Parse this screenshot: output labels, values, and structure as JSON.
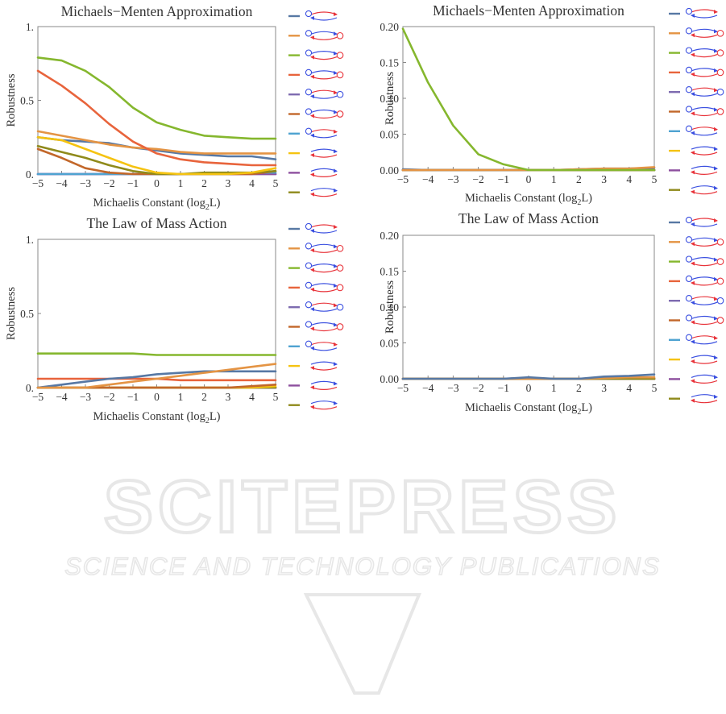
{
  "colors": [
    "#5778a4",
    "#e49444",
    "#85b72e",
    "#e8643c",
    "#7e6bb0",
    "#c2672a",
    "#4fa3d1",
    "#f5c311",
    "#8d4f9e",
    "#8f8a1b"
  ],
  "watermark": {
    "main": "SCITEPRESS",
    "sub": "SCIENCE AND TECHNOLOGY PUBLICATIONS",
    "color": "#e7e7e7"
  },
  "chart_data": [
    {
      "type": "line",
      "title": "Michaels−Menten Approximation",
      "xlabel": "Michaelis Constant (log2L)",
      "ylabel": "Robustness",
      "xlim": [
        -5,
        5
      ],
      "ylim": [
        0,
        1
      ],
      "xticks": [
        "−5",
        "−4",
        "−3",
        "−2",
        "−1",
        "0",
        "1",
        "2",
        "3",
        "4",
        "5"
      ],
      "yticks": [
        "0.",
        "0.5",
        "1."
      ],
      "x": [
        -5,
        -4,
        -3,
        -2,
        -1,
        0,
        1,
        2,
        3,
        4,
        5
      ],
      "series": [
        {
          "values": [
            0.25,
            0.23,
            0.22,
            0.21,
            0.18,
            0.16,
            0.14,
            0.13,
            0.12,
            0.12,
            0.1
          ]
        },
        {
          "values": [
            0.29,
            0.26,
            0.23,
            0.2,
            0.18,
            0.17,
            0.15,
            0.14,
            0.14,
            0.14,
            0.14
          ]
        },
        {
          "values": [
            0.79,
            0.77,
            0.7,
            0.59,
            0.45,
            0.35,
            0.3,
            0.26,
            0.25,
            0.24,
            0.24
          ]
        },
        {
          "values": [
            0.7,
            0.6,
            0.48,
            0.34,
            0.22,
            0.14,
            0.1,
            0.08,
            0.07,
            0.06,
            0.06
          ]
        },
        {
          "values": [
            0,
            0,
            0,
            0,
            0,
            0,
            0,
            0,
            0,
            0,
            0
          ]
        },
        {
          "values": [
            0.17,
            0.11,
            0.04,
            0.01,
            0,
            0,
            0,
            0,
            0,
            0,
            0.02
          ]
        },
        {
          "values": [
            0,
            0,
            0,
            0,
            0,
            0,
            0,
            0,
            0,
            0.01,
            0.01
          ]
        },
        {
          "values": [
            0.25,
            0.23,
            0.17,
            0.11,
            0.05,
            0.01,
            0,
            0,
            0,
            0.01,
            0.04
          ]
        },
        {
          "values": [
            0,
            0,
            0,
            0,
            0,
            0,
            0,
            0,
            0,
            0,
            0
          ]
        },
        {
          "values": [
            0.19,
            0.15,
            0.11,
            0.06,
            0.02,
            0,
            0,
            0.01,
            0.01,
            0.01,
            0.02
          ]
        }
      ]
    },
    {
      "type": "line",
      "title": "Michaels−Menten Approximation",
      "xlabel": "Michaelis Constant (log2L)",
      "ylabel": "Robustness",
      "xlim": [
        -5,
        5
      ],
      "ylim": [
        0,
        0.2
      ],
      "xticks": [
        "−5",
        "−4",
        "−3",
        "−2",
        "−1",
        "0",
        "1",
        "2",
        "3",
        "4",
        "5"
      ],
      "yticks": [
        "0.00",
        "0.05",
        "0.10",
        "0.15",
        "0.20"
      ],
      "x": [
        -5,
        -4,
        -3,
        -2,
        -1,
        0,
        1,
        2,
        3,
        4,
        5
      ],
      "series": [
        {
          "values": [
            0.001,
            0,
            0,
            0,
            0,
            0,
            0,
            0.001,
            0.002,
            0.002,
            0.003
          ]
        },
        {
          "values": [
            0,
            0,
            0,
            0,
            0,
            0,
            0,
            0.001,
            0.002,
            0.002,
            0.004
          ]
        },
        {
          "values": [
            0.197,
            0.122,
            0.062,
            0.022,
            0.008,
            0,
            0,
            0,
            0,
            0,
            0
          ]
        },
        {
          "values": [
            0,
            0,
            0,
            0,
            0,
            0,
            0,
            0,
            0,
            0,
            0
          ]
        },
        {
          "values": [
            0,
            0,
            0,
            0,
            0,
            0,
            0,
            0,
            0,
            0,
            0
          ]
        },
        {
          "values": [
            0,
            0,
            0,
            0,
            0,
            0,
            0,
            0,
            0,
            0,
            0
          ]
        },
        {
          "values": [
            0,
            0,
            0,
            0,
            0,
            0,
            0,
            0,
            0,
            0,
            0
          ]
        },
        {
          "values": [
            0,
            0,
            0,
            0,
            0,
            0,
            0,
            0,
            0,
            0,
            0
          ]
        },
        {
          "values": [
            0,
            0,
            0,
            0,
            0,
            0,
            0,
            0,
            0,
            0,
            0
          ]
        },
        {
          "values": [
            0,
            0,
            0,
            0,
            0,
            0,
            0,
            0,
            0,
            0,
            0
          ]
        }
      ]
    },
    {
      "type": "line",
      "title": "The Law of Mass Action",
      "xlabel": "Michaelis Constant (log2L)",
      "ylabel": "Robustness",
      "xlim": [
        -5,
        5
      ],
      "ylim": [
        0,
        1
      ],
      "xticks": [
        "−5",
        "−4",
        "−3",
        "−2",
        "−1",
        "0",
        "1",
        "2",
        "3",
        "4",
        "5"
      ],
      "yticks": [
        "0.",
        "0.5",
        "1."
      ],
      "x": [
        -5,
        -4,
        -3,
        -2,
        -1,
        0,
        1,
        2,
        3,
        4,
        5
      ],
      "series": [
        {
          "values": [
            0,
            0.02,
            0.04,
            0.06,
            0.07,
            0.09,
            0.1,
            0.11,
            0.11,
            0.11,
            0.11
          ]
        },
        {
          "values": [
            0,
            0,
            0,
            0.02,
            0.04,
            0.06,
            0.08,
            0.1,
            0.12,
            0.14,
            0.16
          ]
        },
        {
          "values": [
            0.23,
            0.23,
            0.23,
            0.23,
            0.23,
            0.22,
            0.22,
            0.22,
            0.22,
            0.22,
            0.22
          ]
        },
        {
          "values": [
            0.06,
            0.06,
            0.06,
            0.06,
            0.06,
            0.06,
            0.05,
            0.05,
            0.05,
            0.05,
            0.05
          ]
        },
        {
          "values": [
            0,
            0,
            0,
            0,
            0,
            0,
            0,
            0,
            0,
            0,
            0
          ]
        },
        {
          "values": [
            0,
            0,
            0,
            0,
            0,
            0,
            0,
            0,
            0,
            0.01,
            0.02
          ]
        },
        {
          "values": [
            0,
            0,
            0,
            0,
            0,
            0,
            0,
            0,
            0,
            0,
            0
          ]
        },
        {
          "values": [
            0,
            0,
            0,
            0,
            0,
            0,
            0,
            0,
            0,
            0,
            0.01
          ]
        },
        {
          "values": [
            0,
            0,
            0,
            0,
            0,
            0,
            0,
            0,
            0,
            0,
            0
          ]
        },
        {
          "values": [
            0,
            0,
            0,
            0,
            0,
            0,
            0,
            0,
            0,
            0,
            0
          ]
        }
      ]
    },
    {
      "type": "line",
      "title": "The Law of Mass Action",
      "xlabel": "Michaelis Constant (log2L)",
      "ylabel": "Robustness",
      "xlim": [
        -5,
        5
      ],
      "ylim": [
        0,
        0.2
      ],
      "xticks": [
        "−5",
        "−4",
        "−3",
        "−2",
        "−1",
        "0",
        "1",
        "2",
        "3",
        "4",
        "5"
      ],
      "yticks": [
        "0.00",
        "0.05",
        "0.10",
        "0.15",
        "0.20"
      ],
      "x": [
        -5,
        -4,
        -3,
        -2,
        -1,
        0,
        1,
        2,
        3,
        4,
        5
      ],
      "series": [
        {
          "values": [
            0,
            0,
            0,
            0,
            0,
            0.002,
            0,
            0,
            0.003,
            0.004,
            0.006
          ]
        },
        {
          "values": [
            0,
            0,
            0,
            0,
            0,
            0,
            0,
            0,
            0.001,
            0.002,
            0.002
          ]
        },
        {
          "values": [
            0,
            0,
            0,
            0,
            0,
            0,
            0,
            0,
            0,
            0,
            0
          ]
        },
        {
          "values": [
            0,
            0,
            0,
            0,
            0,
            0,
            0,
            0,
            0,
            0,
            0
          ]
        },
        {
          "values": [
            0,
            0,
            0,
            0,
            0,
            0,
            0,
            0,
            0,
            0,
            0
          ]
        },
        {
          "values": [
            0,
            0,
            0,
            0,
            0,
            0,
            0,
            0,
            0,
            0,
            0
          ]
        },
        {
          "values": [
            0,
            0,
            0,
            0,
            0,
            0,
            0,
            0,
            0,
            0,
            0
          ]
        },
        {
          "values": [
            0,
            0,
            0,
            0,
            0,
            0,
            0,
            0,
            0,
            0,
            0
          ]
        },
        {
          "values": [
            0,
            0,
            0,
            0,
            0,
            0,
            0,
            0,
            0,
            0,
            0
          ]
        },
        {
          "values": [
            0,
            0,
            0,
            0,
            0,
            0,
            0,
            0,
            0,
            0,
            0
          ]
        }
      ]
    }
  ]
}
